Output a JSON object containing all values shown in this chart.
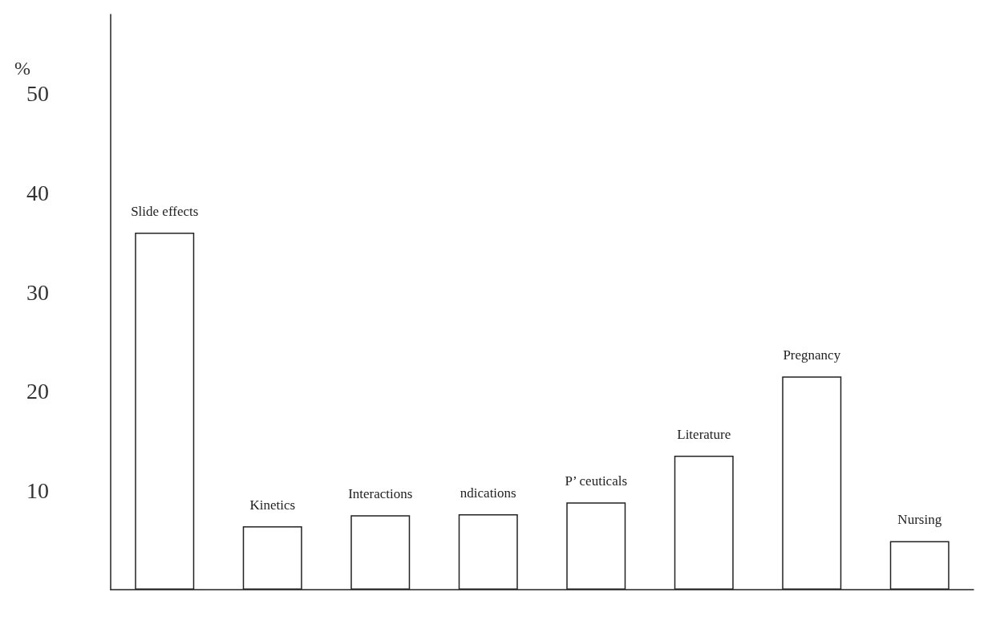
{
  "chart_data": {
    "type": "bar",
    "ylabel": "%",
    "categories": [
      "Slide effects",
      "Kinetics",
      "Interactions",
      "ndications",
      "P’ ceuticals",
      "Literature",
      "Pregnancy",
      "Nursing"
    ],
    "values": [
      36,
      6.4,
      7.5,
      7.6,
      8.8,
      13.5,
      21.5,
      4.9
    ],
    "color": "#ffffff",
    "ylim": [
      0,
      58
    ],
    "yticks": [
      10,
      20,
      30,
      40,
      50
    ],
    "grid": false,
    "tick_labels": "y"
  }
}
